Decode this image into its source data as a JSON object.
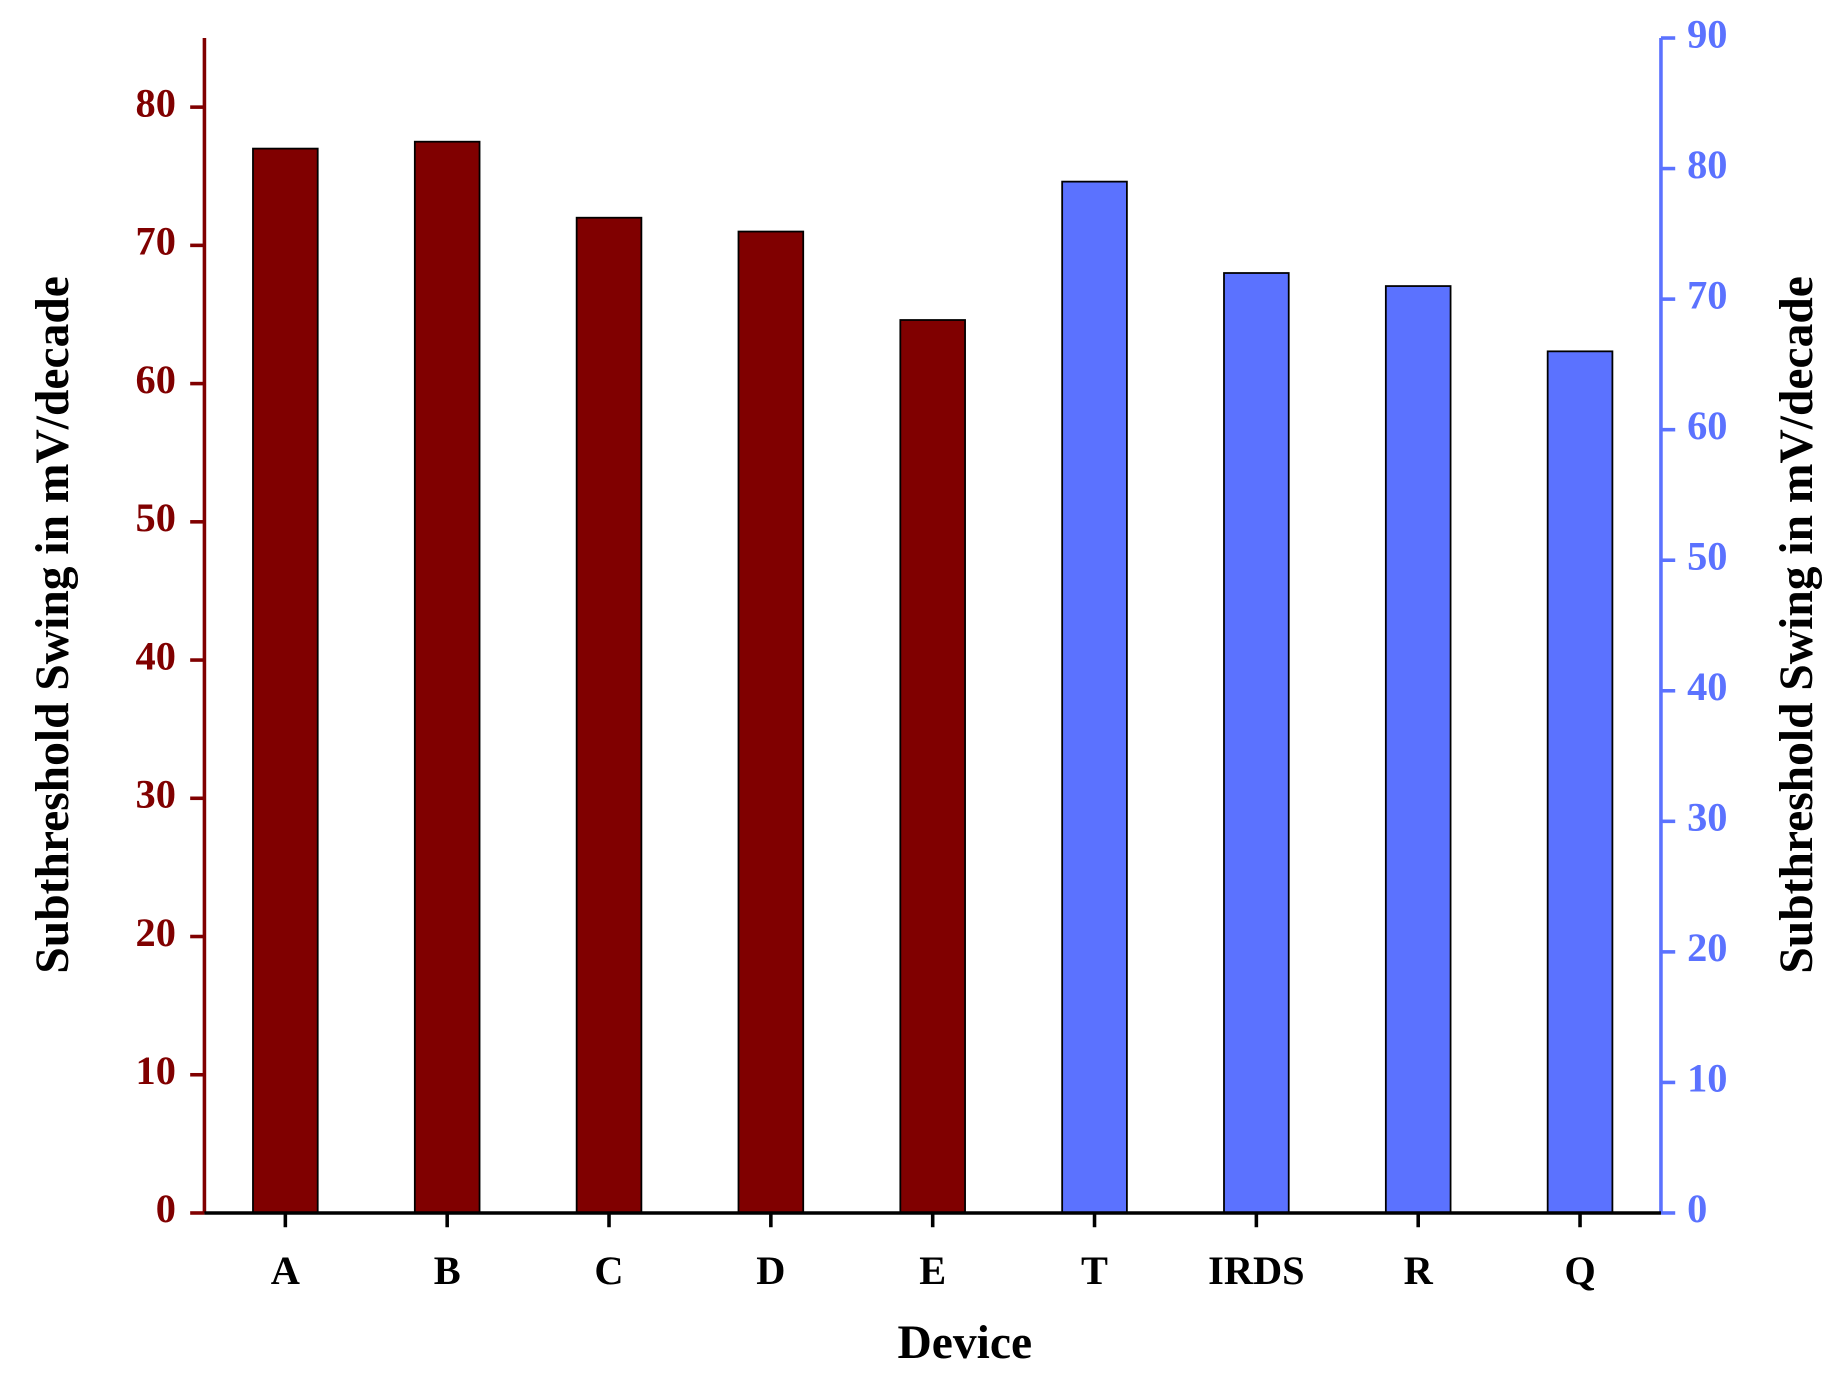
{
  "chart_data": {
    "type": "bar",
    "xlabel": "Device",
    "ylabel": "Subthreshold Swing in mV/decade",
    "y2label": "Subthreshold Swing in mV/decade",
    "categories": [
      "A",
      "B",
      "C",
      "D",
      "E",
      "T",
      "IRDS",
      "R",
      "Q"
    ],
    "series": [
      {
        "color": "#800000",
        "values": [
          77,
          77.5,
          72,
          71,
          64.6,
          null,
          null,
          null,
          null
        ]
      },
      {
        "color": "#5b72ff",
        "axis": "y2",
        "values": [
          null,
          null,
          null,
          null,
          null,
          79,
          72,
          71,
          66
        ]
      }
    ],
    "ylim": [
      0,
      85
    ],
    "yticks": [
      0,
      10,
      20,
      30,
      40,
      50,
      60,
      70,
      80
    ],
    "ycolor": "#800000",
    "y2lim": [
      0,
      90
    ],
    "y2ticks": [
      0,
      10,
      20,
      30,
      40,
      50,
      60,
      70,
      80,
      90
    ],
    "y2color": "#5b72ff",
    "grid": false
  }
}
